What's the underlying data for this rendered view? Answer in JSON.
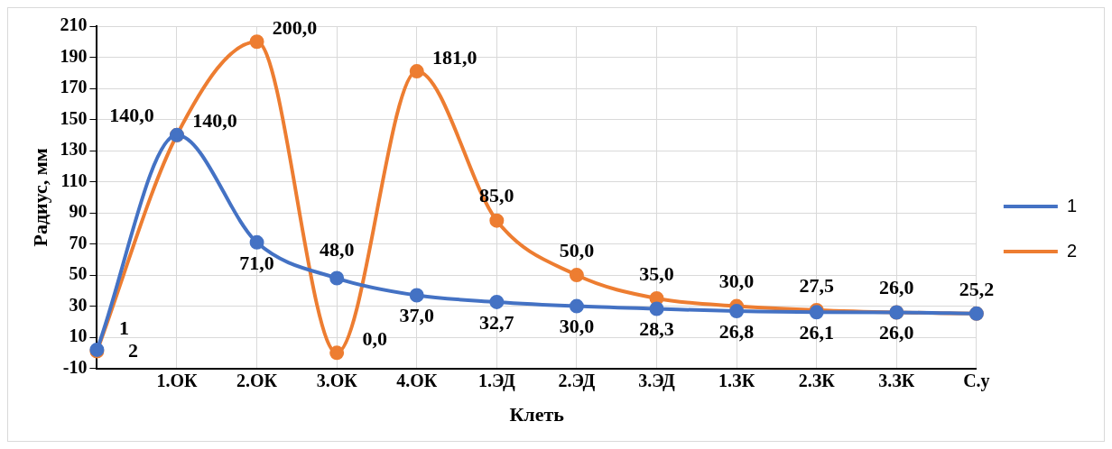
{
  "chart_data": {
    "type": "line",
    "xlabel": "Клеть",
    "ylabel": "Радиус, мм",
    "categories": [
      null,
      "1.ОК",
      "2.ОК",
      "3.ОК",
      "4.ОК",
      "1.ЭД",
      "2.ЭД",
      "3.ЭД",
      "1.ЗК",
      "2.ЗК",
      "3.ЗК",
      "С.у"
    ],
    "series": [
      {
        "name": "1",
        "color": "#4472c4",
        "values": [
          2,
          140,
          71,
          48,
          37,
          32.7,
          30,
          28.3,
          26.8,
          26.1,
          26,
          25.2
        ],
        "value_labels": [
          "2",
          "140,0",
          "71,0",
          "48,0",
          "37,0",
          "32,7",
          "30,0",
          "28,3",
          "26,8",
          "26,1",
          "26,0",
          null
        ]
      },
      {
        "name": "2",
        "color": "#ed7d31",
        "values": [
          1,
          140,
          200,
          0,
          181,
          85,
          50,
          35,
          30,
          27.5,
          26,
          25.2
        ],
        "value_labels": [
          "1",
          "140,0",
          "200,0",
          "0,0",
          "181,0",
          "85,0",
          "50,0",
          "35,0",
          "30,0",
          "27,5",
          "26,0",
          "25,2"
        ]
      }
    ],
    "ylim": [
      -10,
      210
    ],
    "yticks": [
      -10,
      10,
      30,
      50,
      70,
      90,
      110,
      130,
      150,
      170,
      190,
      210
    ],
    "grid": true,
    "legend": "right",
    "marker": "circle",
    "line_style": "solid"
  }
}
